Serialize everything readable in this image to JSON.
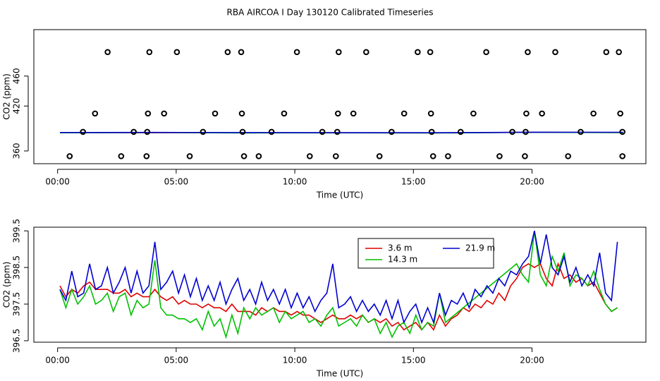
{
  "chart_data": [
    {
      "type": "combo",
      "title": "RBA AIRCOA I  Day 130120  Calibrated Timeseries",
      "xlabel": "Time (UTC)",
      "ylabel": "CO2 (ppm)",
      "xlim": [
        -1,
        24.8
      ],
      "xticks": [
        {
          "value": 0,
          "label": "00:00"
        },
        {
          "value": 5,
          "label": "05:00"
        },
        {
          "value": 10,
          "label": "10:00"
        },
        {
          "value": 15,
          "label": "15:00"
        },
        {
          "value": 20,
          "label": "20:00"
        }
      ],
      "ylim": [
        343,
        522
      ],
      "yticks": [
        360,
        420,
        460
      ],
      "series": [
        {
          "type": "line",
          "color": "#e00000",
          "x": [
            0.1,
            4,
            8,
            12,
            16,
            20,
            23.85
          ],
          "values": [
            384.5,
            384.4,
            384.3,
            384.3,
            384.2,
            384.8,
            384.6
          ]
        },
        {
          "type": "line",
          "color": "#00c000",
          "x": [
            0.1,
            4,
            8,
            12,
            16,
            20,
            23.85
          ],
          "values": [
            384.3,
            384.6,
            384.1,
            384.2,
            384.0,
            384.9,
            384.5
          ]
        },
        {
          "type": "line",
          "color": "#0000d0",
          "x": [
            0.1,
            4,
            8,
            12,
            16,
            20,
            23.85
          ],
          "values": [
            384.6,
            384.7,
            384.5,
            384.4,
            384.4,
            385.0,
            384.9
          ]
        },
        {
          "type": "scatter",
          "color": "#000000",
          "x": [
            2.11,
            3.87,
            5.03,
            7.17,
            7.74,
            10.09,
            11.85,
            13.01,
            15.18,
            15.71,
            18.07,
            19.82,
            20.98,
            23.13,
            23.66,
            1.58,
            3.81,
            4.49,
            6.64,
            7.77,
            9.55,
            11.82,
            12.47,
            14.61,
            15.74,
            17.53,
            19.76,
            20.42,
            22.59,
            23.72,
            1.07,
            3.21,
            3.78,
            6.13,
            7.8,
            9.02,
            11.16,
            11.79,
            14.08,
            15.77,
            16.99,
            19.17,
            19.73,
            22.05,
            23.81,
            0.51,
            2.68,
            3.75,
            5.57,
            7.86,
            8.48,
            10.63,
            11.73,
            13.57,
            15.83,
            16.46,
            18.63,
            19.7,
            21.52,
            23.81
          ],
          "values": [
            492,
            492,
            492,
            492,
            492,
            492,
            492,
            492,
            492,
            492,
            492,
            492,
            492,
            492,
            492,
            410,
            410,
            410,
            410,
            410,
            410,
            410,
            410,
            410,
            410,
            410,
            410,
            410,
            410,
            410,
            385.5,
            385.5,
            385.5,
            385.5,
            385.5,
            385.5,
            385.5,
            385.5,
            385.5,
            385.5,
            385.5,
            385.5,
            385.5,
            385.5,
            385.5,
            353,
            353,
            353,
            353,
            353,
            353,
            353,
            353,
            353,
            353,
            353,
            353,
            353,
            353,
            353
          ]
        }
      ]
    },
    {
      "type": "line",
      "xlabel": "Time (UTC)",
      "ylabel": "CO2 (ppm)",
      "xlim": [
        -1,
        24.8
      ],
      "xticks": [
        {
          "value": 0,
          "label": "00:00"
        },
        {
          "value": 5,
          "label": "05:00"
        },
        {
          "value": 10,
          "label": "10:00"
        },
        {
          "value": 15,
          "label": "15:00"
        },
        {
          "value": 20,
          "label": "20:00"
        }
      ],
      "ylim": [
        396.46,
        399.6
      ],
      "yticks": [
        396.5,
        397.5,
        398.5,
        399.5
      ],
      "legend": "top",
      "series": [
        {
          "name": "3.6 m",
          "color": "#e00000",
          "x": [
            0.1,
            0.35,
            0.6,
            0.85,
            1.1,
            1.35,
            1.6,
            1.85,
            2.1,
            2.35,
            2.6,
            2.85,
            3.1,
            3.35,
            3.6,
            3.85,
            4.1,
            4.35,
            4.6,
            4.85,
            5.1,
            5.35,
            5.6,
            5.85,
            6.1,
            6.35,
            6.6,
            6.85,
            7.1,
            7.35,
            7.6,
            7.85,
            8.1,
            8.35,
            8.6,
            8.85,
            9.1,
            9.35,
            9.6,
            9.85,
            10.1,
            10.35,
            10.6,
            10.85,
            11.1,
            11.35,
            11.6,
            11.85,
            12.1,
            12.35,
            12.6,
            12.85,
            13.1,
            13.35,
            13.6,
            13.85,
            14.1,
            14.35,
            14.6,
            14.85,
            15.1,
            15.35,
            15.6,
            15.85,
            16.1,
            16.35,
            16.6,
            16.85,
            17.1,
            17.35,
            17.6,
            17.85,
            18.1,
            18.35,
            18.6,
            18.85,
            19.1,
            19.35,
            19.6,
            19.85,
            20.1,
            20.35,
            20.6,
            20.85,
            21.1,
            21.35,
            21.6,
            21.85,
            22.1,
            22.35,
            22.6,
            22.85,
            23.1,
            23.35,
            23.6
          ],
          "values": [
            398.0,
            397.7,
            397.9,
            397.8,
            398.0,
            398.1,
            397.9,
            397.9,
            397.9,
            397.8,
            397.8,
            397.9,
            397.7,
            397.8,
            397.7,
            397.7,
            397.9,
            397.7,
            397.6,
            397.7,
            397.5,
            397.6,
            397.5,
            397.5,
            397.4,
            397.5,
            397.4,
            397.4,
            397.3,
            397.5,
            397.3,
            397.3,
            397.3,
            397.2,
            397.4,
            397.3,
            397.4,
            397.3,
            397.3,
            397.2,
            397.3,
            397.2,
            397.2,
            397.1,
            397.0,
            397.1,
            397.2,
            397.1,
            397.1,
            397.2,
            397.1,
            397.2,
            397.0,
            397.1,
            397.0,
            397.1,
            396.9,
            397.0,
            396.8,
            396.9,
            397.0,
            396.8,
            397.0,
            396.8,
            397.2,
            396.9,
            397.1,
            397.2,
            397.4,
            397.3,
            397.5,
            397.4,
            397.6,
            397.5,
            397.8,
            397.6,
            398.0,
            398.2,
            398.5,
            398.6,
            398.5,
            398.6,
            398.2,
            398.0,
            398.6,
            398.2,
            398.3,
            398.1,
            398.2,
            398.0,
            398.1,
            397.8,
            397.5,
            397.3,
            397.4
          ]
        },
        {
          "name": "14.3 m",
          "color": "#00c000",
          "x": [
            0.1,
            0.35,
            0.6,
            0.85,
            1.1,
            1.35,
            1.6,
            1.85,
            2.1,
            2.35,
            2.6,
            2.85,
            3.1,
            3.35,
            3.6,
            3.85,
            4.1,
            4.35,
            4.6,
            4.85,
            5.1,
            5.35,
            5.6,
            5.85,
            6.1,
            6.35,
            6.6,
            6.85,
            7.1,
            7.35,
            7.6,
            7.85,
            8.1,
            8.35,
            8.6,
            8.85,
            9.1,
            9.35,
            9.6,
            9.85,
            10.1,
            10.35,
            10.6,
            10.85,
            11.1,
            11.35,
            11.6,
            11.85,
            12.1,
            12.35,
            12.6,
            12.85,
            13.1,
            13.35,
            13.6,
            13.85,
            14.1,
            14.35,
            14.6,
            14.85,
            15.1,
            15.35,
            15.6,
            15.85,
            16.1,
            16.35,
            19.35,
            19.6,
            19.85,
            20.1,
            20.35,
            20.6,
            20.85,
            21.1,
            21.35,
            21.6,
            21.85,
            22.1,
            22.35,
            22.6,
            22.85,
            23.1,
            23.35,
            23.6
          ],
          "values": [
            397.9,
            397.4,
            397.9,
            397.5,
            397.7,
            398.0,
            397.5,
            397.6,
            397.8,
            397.3,
            397.7,
            397.8,
            397.2,
            397.6,
            397.4,
            397.5,
            398.7,
            397.4,
            397.2,
            397.2,
            397.1,
            397.1,
            397.0,
            397.1,
            396.8,
            397.3,
            396.9,
            397.1,
            396.6,
            397.2,
            396.7,
            397.4,
            397.1,
            397.4,
            397.2,
            397.3,
            397.4,
            397.0,
            397.3,
            397.1,
            397.2,
            397.3,
            397.0,
            397.1,
            396.9,
            397.2,
            397.4,
            396.9,
            397.0,
            397.1,
            396.9,
            397.2,
            397.0,
            397.1,
            396.7,
            397.0,
            396.6,
            396.9,
            397.0,
            396.7,
            397.2,
            396.8,
            397.0,
            396.9,
            397.8,
            397.0,
            398.6,
            398.3,
            398.1,
            399.5,
            398.3,
            398.0,
            398.8,
            398.4,
            398.9,
            398.0,
            398.3,
            398.2,
            398.0,
            398.4,
            397.9,
            397.5,
            397.3,
            397.4
          ]
        },
        {
          "name": "21.9 m",
          "color": "#0000d0",
          "x": [
            0.1,
            0.35,
            0.6,
            0.85,
            1.1,
            1.35,
            1.6,
            1.85,
            2.1,
            2.35,
            2.6,
            2.85,
            3.1,
            3.35,
            3.6,
            3.85,
            4.1,
            4.35,
            4.6,
            4.85,
            5.1,
            5.35,
            5.6,
            5.85,
            6.1,
            6.35,
            6.6,
            6.85,
            7.1,
            7.35,
            7.6,
            7.85,
            8.1,
            8.35,
            8.6,
            8.85,
            9.1,
            9.35,
            9.6,
            9.85,
            10.1,
            10.35,
            10.6,
            10.85,
            11.1,
            11.35,
            11.6,
            11.85,
            12.1,
            12.35,
            12.6,
            12.85,
            13.1,
            13.35,
            13.6,
            13.85,
            14.1,
            14.35,
            14.6,
            14.85,
            15.1,
            15.35,
            15.6,
            15.85,
            16.1,
            16.35,
            16.6,
            16.85,
            17.1,
            17.35,
            17.6,
            17.85,
            18.1,
            18.35,
            18.6,
            18.85,
            19.1,
            19.35,
            19.6,
            19.85,
            20.1,
            20.35,
            20.6,
            20.85,
            21.1,
            21.35,
            21.6,
            21.85,
            22.1,
            22.35,
            22.6,
            22.85,
            23.1,
            23.35,
            23.6
          ],
          "values": [
            397.9,
            397.6,
            398.4,
            397.7,
            397.8,
            398.6,
            397.9,
            398.0,
            398.5,
            397.8,
            398.1,
            398.5,
            397.8,
            398.4,
            397.8,
            398.0,
            399.2,
            397.9,
            398.1,
            398.4,
            397.8,
            398.3,
            397.7,
            398.2,
            397.6,
            398.0,
            397.6,
            398.1,
            397.5,
            397.9,
            398.2,
            397.6,
            397.9,
            397.5,
            398.1,
            397.6,
            397.9,
            397.5,
            397.9,
            397.4,
            397.8,
            397.4,
            397.7,
            397.3,
            397.6,
            397.8,
            398.6,
            397.4,
            397.5,
            397.7,
            397.3,
            397.6,
            397.3,
            397.5,
            397.2,
            397.6,
            397.1,
            397.6,
            397.0,
            397.3,
            397.5,
            397.0,
            397.4,
            397.0,
            397.8,
            397.2,
            397.6,
            397.5,
            397.8,
            397.4,
            397.9,
            397.7,
            398.0,
            397.8,
            398.2,
            398.0,
            398.4,
            398.3,
            398.6,
            398.8,
            399.5,
            398.6,
            399.4,
            398.5,
            398.3,
            398.8,
            398.1,
            398.5,
            398.0,
            398.3,
            398.0,
            398.9,
            397.8,
            397.6,
            399.2
          ]
        }
      ]
    }
  ]
}
